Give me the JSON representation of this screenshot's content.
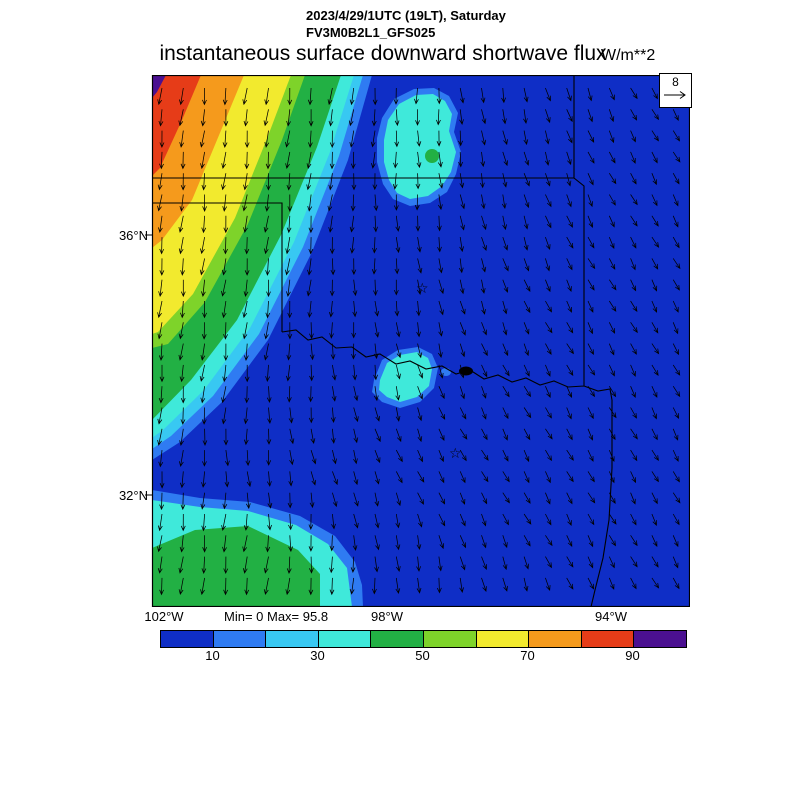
{
  "header": {
    "date_line": "2023/4/29/1UTC (19LT), Saturday",
    "model_line": "FV3M0B2L1_GFS025"
  },
  "title": {
    "text": "instantaneous surface downward shortwave flux",
    "units": "W/m**2"
  },
  "stats": {
    "label": "Min= 0 Max= 95.8",
    "min": 0,
    "max": 95.8
  },
  "axes": {
    "lat": [
      "36°N",
      "32°N"
    ],
    "lon": [
      "102°W",
      "98°W",
      "94°W"
    ]
  },
  "ref_vector": {
    "value": "8"
  },
  "colorbar": {
    "tick_labels": [
      "10",
      "30",
      "50",
      "70",
      "90"
    ],
    "colors": [
      "#0f2ec6",
      "#2f7bf2",
      "#38c8f2",
      "#3fe9da",
      "#22b044",
      "#7ed32a",
      "#f2ea2e",
      "#f59a1c",
      "#e63c18",
      "#4b1091"
    ]
  },
  "chart_data": {
    "type": "heatmap",
    "title": "instantaneous surface downward shortwave flux",
    "units": "W/m**2",
    "valid_time": "2023/4/29/1UTC (19LT), Saturday",
    "model": "FV3M0B2L1_GFS025",
    "min": 0,
    "max": 95.8,
    "contour_levels": [
      10,
      20,
      30,
      40,
      50,
      60,
      70,
      80,
      90,
      100
    ],
    "colorbar_tick_labels": [
      10,
      30,
      50,
      70,
      90
    ],
    "level_colors": [
      "#0f2ec6",
      "#2f7bf2",
      "#38c8f2",
      "#3fe9da",
      "#22b044",
      "#7ed32a",
      "#f2ea2e",
      "#f59a1c",
      "#e63c18",
      "#4b1091"
    ],
    "lat_ticks": [
      "36°N",
      "32°N"
    ],
    "lon_ticks": [
      "102°W",
      "98°W",
      "94°W"
    ],
    "wind_reference_vector": 8,
    "region": "Southern Great Plains (Texas / Oklahoma area) with state borders and Red River drawn",
    "pattern": "Flux is highest (~95 W/m**2, orange-red-purple) in the far northwest corner and decreases southeastward in diagonal banded contours (yellow, green, cyan) to 0-10 W/m**2 (blue) over most of the domain; secondary cyan/green low-value lobes along the southwest edge and two small cyan patches north-center and center; wind vectors point generally southward in the west and south-southeastward in the east, reference vector 8."
  }
}
